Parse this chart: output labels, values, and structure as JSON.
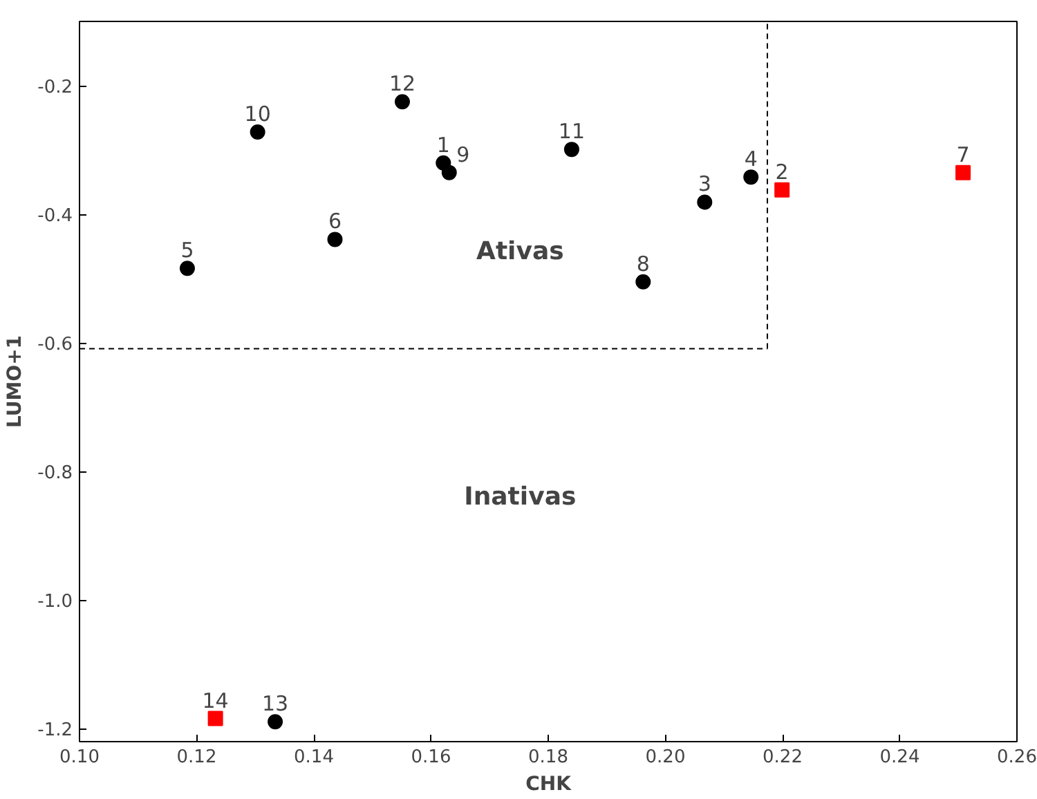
{
  "chart_data": {
    "type": "scatter",
    "xlabel": "CHK",
    "ylabel": "LUMO+1",
    "xlim": [
      0.1,
      0.26
    ],
    "ylim": [
      -1.22,
      -0.1
    ],
    "xticks": [
      {
        "value": 0.1,
        "label": "0.10"
      },
      {
        "value": 0.12,
        "label": "0.12"
      },
      {
        "value": 0.14,
        "label": "0.14"
      },
      {
        "value": 0.16,
        "label": "0.16"
      },
      {
        "value": 0.18,
        "label": "0.18"
      },
      {
        "value": 0.2,
        "label": "0.20"
      },
      {
        "value": 0.22,
        "label": "0.22"
      },
      {
        "value": 0.24,
        "label": "0.24"
      },
      {
        "value": 0.26,
        "label": "0.26"
      }
    ],
    "yticks": [
      -0.2,
      -0.4,
      -0.6,
      -0.8,
      {
        "value": -1.0,
        "label": "-1.0"
      },
      -1.2
    ],
    "grid": false,
    "series": [
      {
        "color": "#000000",
        "marker": "circle",
        "x": [
          0.1184,
          0.1304,
          0.1436,
          0.1551,
          0.1621,
          0.1631,
          0.184,
          0.1962,
          0.2067,
          0.2146,
          0.1334
        ],
        "values": [
          -0.484,
          -0.272,
          -0.439,
          -0.225,
          -0.32,
          -0.335,
          -0.299,
          -0.505,
          -0.381,
          -0.342,
          -1.189
        ]
      },
      {
        "color": "#ff0000",
        "marker": "square",
        "x": [
          0.2199,
          0.2508,
          0.1232
        ],
        "values": [
          -0.362,
          -0.335,
          -1.184
        ]
      }
    ],
    "ref_lines": [
      {
        "axis": "x",
        "value": 0.2174,
        "line_style": "dashed",
        "color": "#000000"
      },
      {
        "axis": "y",
        "value": -0.609,
        "line_style": "dashed",
        "color": "#000000"
      }
    ],
    "annotations": [
      "Ativas",
      "Inativas",
      {
        "text": "5",
        "x": 0.1184,
        "y": -0.484
      },
      {
        "text": "10",
        "x": 0.1304,
        "y": -0.272
      },
      {
        "text": "6",
        "x": 0.1436,
        "y": -0.439
      },
      {
        "text": "12",
        "x": 0.1551,
        "y": -0.225
      },
      {
        "text": "1",
        "x": 0.1621,
        "y": -0.32
      },
      {
        "text": "9",
        "x": 0.1631,
        "y": -0.335
      },
      {
        "text": "11",
        "x": 0.184,
        "y": -0.299
      },
      {
        "text": "8",
        "x": 0.1962,
        "y": -0.505
      },
      {
        "text": "3",
        "x": 0.2067,
        "y": -0.381
      },
      {
        "text": "4",
        "x": 0.2146,
        "y": -0.342
      },
      {
        "text": "13",
        "x": 0.1334,
        "y": -1.189
      },
      {
        "text": "2",
        "x": 0.2199,
        "y": -0.362
      },
      {
        "text": "7",
        "x": 0.2508,
        "y": -0.335
      },
      {
        "text": "14",
        "x": 0.1232,
        "y": -1.184
      }
    ]
  }
}
